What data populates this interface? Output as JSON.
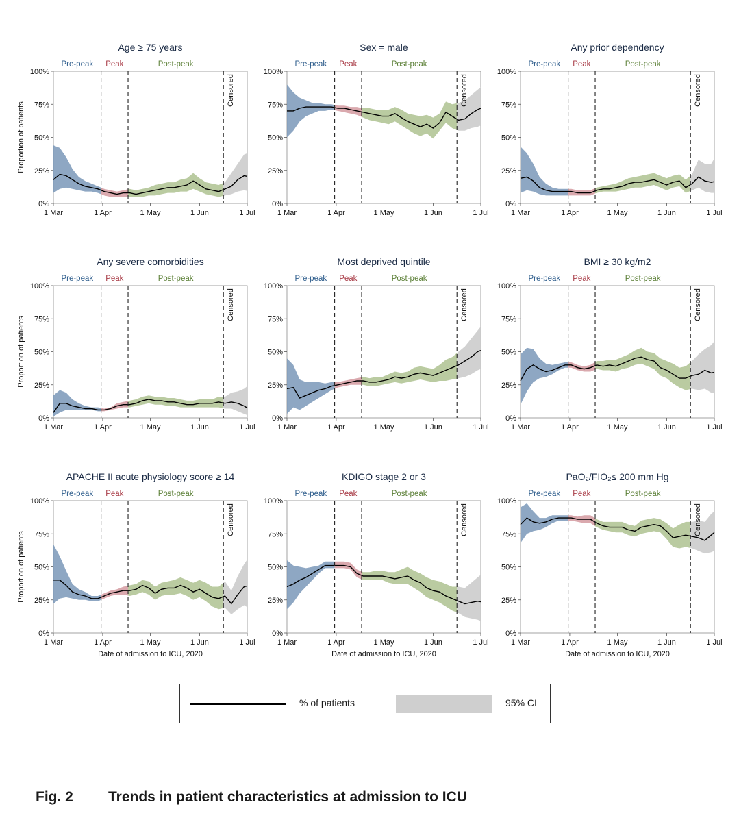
{
  "figure": {
    "caption_number": "Fig. 2",
    "caption_title": "Trends in patient characteristics at admission to ICU",
    "y_axis_label": "Proportion of patients",
    "x_axis_label": "Date of admission to ICU, 2020",
    "x_tick_labels": [
      "1 Mar",
      "1 Apr",
      "1 May",
      "1 Jun",
      "1 Jul"
    ],
    "y_tick_labels": [
      "0%",
      "25%",
      "50%",
      "75%",
      "100%"
    ],
    "phase_labels": [
      "Pre-peak",
      "Peak",
      "Post-peak"
    ],
    "censored_label": "Censored",
    "colors": {
      "prepeak": "#7a98b8",
      "peak": "#d49aa0",
      "postpeak": "#aec290",
      "censored": "#c9c9c9",
      "prepeak_text": "#2e5d8c",
      "peak_text": "#a83a45",
      "postpeak_text": "#5b7f36",
      "line": "#000000"
    }
  },
  "legend": {
    "line_label": "% of patients",
    "band_label": "95% CI"
  },
  "chart_data": [
    {
      "type": "line",
      "title": "Age ≥ 75 years",
      "ylim": [
        0,
        100
      ],
      "x_days": [
        0,
        4,
        8,
        12,
        16,
        20,
        24,
        28,
        32,
        36,
        40,
        44,
        48,
        52,
        56,
        60,
        64,
        68,
        72,
        76,
        80,
        84,
        88,
        92,
        96,
        100,
        104,
        108,
        112,
        116,
        120,
        124
      ],
      "values": [
        18,
        22,
        21,
        18,
        15,
        13,
        12,
        11,
        9,
        8,
        7,
        8,
        8,
        7,
        8,
        9,
        10,
        11,
        12,
        12,
        13,
        14,
        17,
        14,
        11,
        10,
        9,
        11,
        13,
        18,
        21,
        20
      ],
      "ci_lower": [
        8,
        11,
        12,
        11,
        10,
        9,
        9,
        8,
        6,
        5,
        5,
        5,
        5,
        5,
        5,
        6,
        6,
        7,
        8,
        8,
        9,
        9,
        11,
        9,
        7,
        6,
        5,
        6,
        7,
        9,
        10,
        9
      ],
      "ci_upper": [
        44,
        42,
        35,
        26,
        20,
        17,
        15,
        13,
        11,
        10,
        9,
        10,
        11,
        10,
        11,
        12,
        14,
        15,
        16,
        16,
        18,
        19,
        23,
        19,
        16,
        15,
        14,
        16,
        23,
        30,
        37,
        39
      ]
    },
    {
      "type": "line",
      "title": "Sex = male",
      "ylim": [
        0,
        100
      ],
      "x_days": [
        0,
        4,
        8,
        12,
        16,
        20,
        24,
        28,
        32,
        36,
        40,
        44,
        48,
        52,
        56,
        60,
        64,
        68,
        72,
        76,
        80,
        84,
        88,
        92,
        96,
        100,
        104,
        108,
        112,
        116,
        120,
        124
      ],
      "values": [
        70,
        70,
        72,
        73,
        73,
        73,
        73,
        73,
        72,
        72,
        71,
        70,
        69,
        68,
        67,
        66,
        66,
        68,
        65,
        62,
        60,
        58,
        60,
        57,
        61,
        69,
        66,
        63,
        64,
        68,
        71,
        73
      ],
      "ci_lower": [
        50,
        55,
        62,
        66,
        68,
        70,
        70,
        71,
        70,
        69,
        68,
        67,
        65,
        63,
        62,
        61,
        60,
        62,
        59,
        56,
        53,
        51,
        53,
        49,
        55,
        61,
        57,
        55,
        55,
        57,
        58,
        60
      ],
      "ci_upper": [
        90,
        84,
        80,
        78,
        76,
        76,
        75,
        75,
        74,
        74,
        73,
        73,
        72,
        72,
        71,
        71,
        71,
        73,
        71,
        68,
        67,
        66,
        67,
        65,
        68,
        77,
        75,
        76,
        78,
        82,
        86,
        90
      ]
    },
    {
      "type": "line",
      "title": "Any prior dependency",
      "ylim": [
        0,
        100
      ],
      "x_days": [
        0,
        4,
        8,
        12,
        16,
        20,
        24,
        28,
        32,
        36,
        40,
        44,
        48,
        52,
        56,
        60,
        64,
        68,
        72,
        76,
        80,
        84,
        88,
        92,
        96,
        100,
        104,
        108,
        112,
        116,
        120,
        124
      ],
      "values": [
        19,
        20,
        17,
        12,
        10,
        9,
        9,
        9,
        9,
        8,
        8,
        8,
        10,
        11,
        11,
        12,
        13,
        15,
        16,
        16,
        17,
        18,
        16,
        14,
        16,
        17,
        12,
        15,
        20,
        17,
        16,
        17
      ],
      "ci_lower": [
        8,
        10,
        9,
        7,
        6,
        6,
        6,
        6,
        6,
        6,
        6,
        6,
        8,
        9,
        9,
        9,
        10,
        11,
        12,
        12,
        13,
        14,
        12,
        10,
        12,
        13,
        8,
        10,
        12,
        9,
        8,
        8
      ],
      "ci_upper": [
        43,
        38,
        30,
        20,
        15,
        12,
        11,
        11,
        11,
        10,
        10,
        10,
        12,
        13,
        14,
        15,
        17,
        19,
        20,
        21,
        22,
        23,
        21,
        19,
        21,
        22,
        18,
        22,
        33,
        30,
        30,
        38
      ]
    },
    {
      "type": "line",
      "title": "Any severe comorbidities",
      "ylim": [
        0,
        100
      ],
      "x_days": [
        0,
        4,
        8,
        12,
        16,
        20,
        24,
        28,
        32,
        36,
        40,
        44,
        48,
        52,
        56,
        60,
        64,
        68,
        72,
        76,
        80,
        84,
        88,
        92,
        96,
        100,
        104,
        108,
        112,
        116,
        120,
        124
      ],
      "values": [
        4,
        11,
        11,
        9,
        8,
        7,
        7,
        6,
        6,
        7,
        9,
        10,
        10,
        11,
        13,
        14,
        13,
        13,
        12,
        12,
        11,
        10,
        10,
        11,
        11,
        11,
        12,
        11,
        12,
        11,
        9,
        6
      ],
      "ci_lower": [
        1,
        4,
        6,
        6,
        6,
        6,
        6,
        5,
        5,
        6,
        7,
        8,
        8,
        9,
        10,
        11,
        10,
        10,
        9,
        9,
        8,
        8,
        8,
        8,
        8,
        8,
        8,
        7,
        7,
        5,
        3,
        1
      ],
      "ci_upper": [
        17,
        21,
        19,
        14,
        11,
        9,
        8,
        8,
        7,
        8,
        11,
        12,
        13,
        14,
        16,
        17,
        16,
        16,
        15,
        15,
        14,
        13,
        13,
        14,
        14,
        14,
        16,
        16,
        19,
        20,
        22,
        26
      ]
    },
    {
      "type": "line",
      "title": "Most deprived quintile",
      "ylim": [
        0,
        100
      ],
      "x_days": [
        0,
        4,
        8,
        12,
        16,
        20,
        24,
        28,
        32,
        36,
        40,
        44,
        48,
        52,
        56,
        60,
        64,
        68,
        72,
        76,
        80,
        84,
        88,
        92,
        96,
        100,
        104,
        108,
        112,
        116,
        120,
        124
      ],
      "values": [
        22,
        23,
        15,
        17,
        19,
        21,
        22,
        24,
        25,
        26,
        27,
        28,
        28,
        27,
        27,
        28,
        29,
        31,
        30,
        31,
        33,
        34,
        33,
        32,
        34,
        36,
        38,
        40,
        43,
        46,
        50,
        52
      ],
      "ci_lower": [
        3,
        8,
        6,
        9,
        12,
        15,
        18,
        21,
        23,
        24,
        25,
        25,
        25,
        24,
        24,
        25,
        26,
        27,
        26,
        27,
        28,
        29,
        28,
        27,
        28,
        28,
        29,
        30,
        31,
        33,
        36,
        38
      ],
      "ci_upper": [
        45,
        40,
        29,
        27,
        27,
        27,
        26,
        27,
        27,
        28,
        29,
        30,
        31,
        30,
        31,
        31,
        33,
        35,
        34,
        35,
        38,
        39,
        38,
        37,
        40,
        44,
        46,
        50,
        54,
        60,
        66,
        72
      ]
    },
    {
      "type": "line",
      "title": "BMI ≥ 30 kg/m2",
      "ylim": [
        0,
        100
      ],
      "x_days": [
        0,
        4,
        8,
        12,
        16,
        20,
        24,
        28,
        32,
        36,
        40,
        44,
        48,
        52,
        56,
        60,
        64,
        68,
        72,
        76,
        80,
        84,
        88,
        92,
        96,
        100,
        104,
        108,
        112,
        116,
        120,
        124
      ],
      "values": [
        28,
        37,
        40,
        37,
        35,
        36,
        38,
        40,
        40,
        38,
        37,
        38,
        40,
        39,
        40,
        39,
        41,
        43,
        45,
        46,
        44,
        43,
        38,
        36,
        33,
        30,
        30,
        32,
        33,
        36,
        34,
        35
      ],
      "ci_lower": [
        10,
        20,
        27,
        30,
        31,
        33,
        36,
        38,
        38,
        36,
        35,
        35,
        37,
        36,
        36,
        35,
        37,
        38,
        40,
        41,
        39,
        37,
        32,
        30,
        26,
        23,
        21,
        22,
        21,
        22,
        19,
        18
      ],
      "ci_upper": [
        48,
        53,
        52,
        45,
        41,
        40,
        41,
        42,
        42,
        40,
        39,
        40,
        43,
        43,
        44,
        44,
        46,
        48,
        51,
        53,
        50,
        49,
        45,
        43,
        41,
        38,
        39,
        43,
        48,
        52,
        55,
        61
      ]
    },
    {
      "type": "line",
      "title": "APACHE II acute physiology score ≥ 14",
      "ylim": [
        0,
        100
      ],
      "x_days": [
        0,
        4,
        8,
        12,
        16,
        20,
        24,
        28,
        32,
        36,
        40,
        44,
        48,
        52,
        56,
        60,
        64,
        68,
        72,
        76,
        80,
        84,
        88,
        92,
        96,
        100,
        104,
        108,
        112,
        116,
        120,
        124
      ],
      "values": [
        40,
        40,
        36,
        31,
        29,
        28,
        26,
        26,
        28,
        30,
        31,
        32,
        32,
        33,
        36,
        34,
        30,
        33,
        34,
        34,
        36,
        34,
        31,
        33,
        30,
        27,
        26,
        28,
        22,
        29,
        35,
        36
      ],
      "ci_lower": [
        22,
        26,
        27,
        26,
        25,
        25,
        24,
        24,
        26,
        28,
        29,
        29,
        28,
        29,
        31,
        29,
        25,
        28,
        29,
        29,
        30,
        28,
        25,
        27,
        24,
        20,
        18,
        19,
        14,
        18,
        21,
        18
      ],
      "ci_upper": [
        67,
        58,
        47,
        37,
        33,
        31,
        28,
        28,
        30,
        32,
        33,
        35,
        36,
        37,
        40,
        39,
        35,
        38,
        39,
        40,
        42,
        40,
        38,
        40,
        38,
        35,
        35,
        39,
        32,
        43,
        52,
        59
      ]
    },
    {
      "type": "line",
      "title": "KDIGO stage 2 or 3",
      "ylim": [
        0,
        100
      ],
      "x_days": [
        0,
        4,
        8,
        12,
        16,
        20,
        24,
        28,
        32,
        36,
        40,
        44,
        48,
        52,
        56,
        60,
        64,
        68,
        72,
        76,
        80,
        84,
        88,
        92,
        96,
        100,
        104,
        108,
        112,
        116,
        120,
        124
      ],
      "values": [
        35,
        37,
        40,
        42,
        45,
        48,
        51,
        51,
        51,
        51,
        50,
        45,
        43,
        43,
        43,
        43,
        42,
        41,
        42,
        43,
        40,
        38,
        34,
        32,
        31,
        28,
        26,
        24,
        22,
        23,
        24,
        23
      ],
      "ci_lower": [
        18,
        23,
        30,
        35,
        40,
        45,
        49,
        49,
        49,
        49,
        48,
        42,
        40,
        40,
        40,
        40,
        38,
        37,
        37,
        37,
        34,
        31,
        27,
        25,
        23,
        20,
        17,
        15,
        12,
        11,
        10,
        8
      ],
      "ci_upper": [
        55,
        51,
        50,
        49,
        50,
        51,
        54,
        54,
        54,
        54,
        53,
        48,
        46,
        46,
        47,
        47,
        46,
        46,
        48,
        50,
        47,
        45,
        42,
        40,
        39,
        37,
        35,
        35,
        34,
        38,
        42,
        46
      ]
    },
    {
      "type": "line",
      "title": "PaO₂/FIO₂≤ 200 mm Hg",
      "ylim": [
        0,
        100
      ],
      "x_days": [
        0,
        4,
        8,
        12,
        16,
        20,
        24,
        28,
        32,
        36,
        40,
        44,
        48,
        52,
        56,
        60,
        64,
        68,
        72,
        76,
        80,
        84,
        88,
        92,
        96,
        100,
        104,
        108,
        112,
        116,
        120,
        124
      ],
      "values": [
        82,
        87,
        84,
        83,
        84,
        86,
        87,
        87,
        87,
        86,
        86,
        86,
        83,
        81,
        80,
        80,
        80,
        78,
        77,
        80,
        81,
        82,
        81,
        77,
        72,
        73,
        74,
        73,
        72,
        70,
        74,
        78
      ],
      "ci_lower": [
        68,
        75,
        77,
        78,
        80,
        83,
        85,
        85,
        85,
        84,
        83,
        83,
        80,
        78,
        77,
        76,
        76,
        74,
        73,
        75,
        76,
        77,
        76,
        71,
        65,
        64,
        65,
        64,
        62,
        60,
        61,
        63
      ],
      "ci_upper": [
        95,
        98,
        92,
        87,
        87,
        89,
        89,
        89,
        89,
        88,
        89,
        89,
        86,
        84,
        84,
        84,
        84,
        82,
        81,
        85,
        86,
        87,
        86,
        83,
        79,
        82,
        84,
        84,
        85,
        84,
        90,
        94
      ]
    }
  ]
}
